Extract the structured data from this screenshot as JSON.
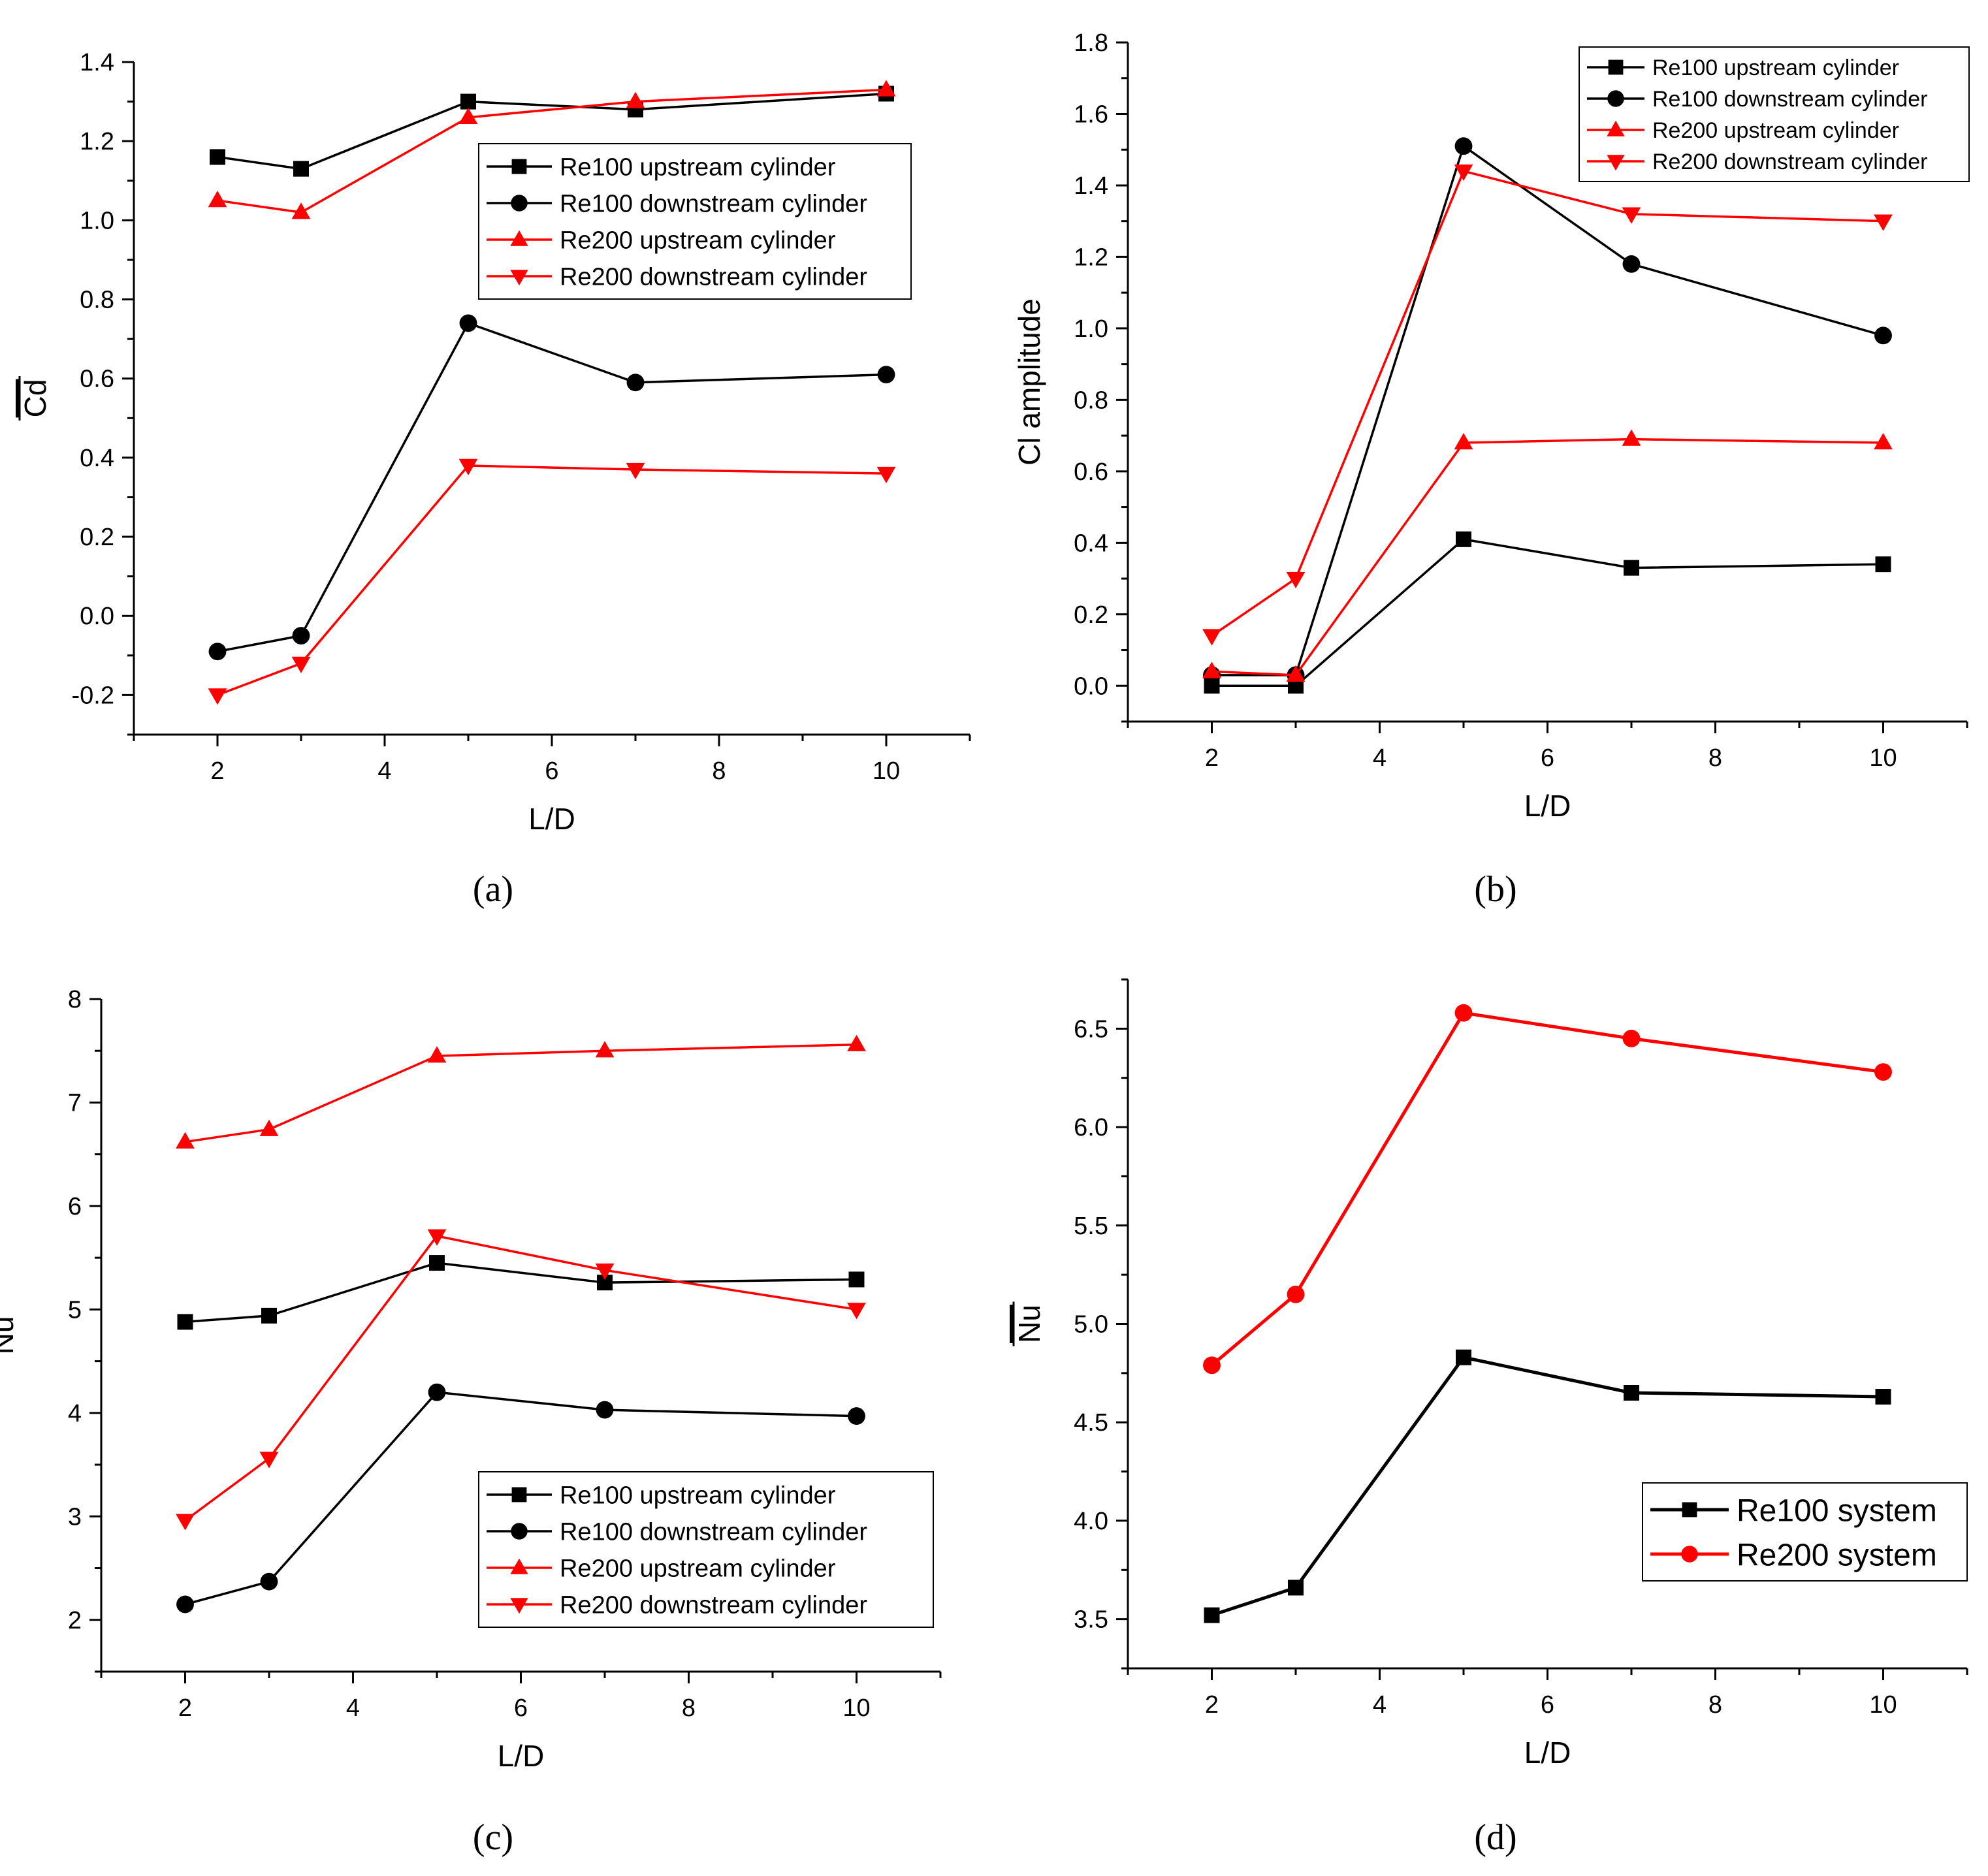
{
  "figure": {
    "panels": [
      {
        "id": "a",
        "caption": "(a)",
        "ylabel": "Cd",
        "ylabel_overline": true,
        "legend": [
          {
            "label": "Re100 upstream cylinder"
          },
          {
            "label": "Re100 downstream cylinder"
          },
          {
            "label": "Re200 upstream cylinder"
          },
          {
            "label": "Re200 downstream cylinder"
          }
        ]
      },
      {
        "id": "b",
        "caption": "(b)",
        "ylabel": "Cl amplitude",
        "ylabel_overline": false,
        "legend": [
          {
            "label": "Re100 upstream cylinder"
          },
          {
            "label": "Re100 downstream cylinder"
          },
          {
            "label": "Re200 upstream cylinder"
          },
          {
            "label": "Re200 downstream cylinder"
          }
        ]
      },
      {
        "id": "c",
        "caption": "(c)",
        "ylabel": "Nu",
        "ylabel_overline": true,
        "legend": [
          {
            "label": "Re100 upstream cylinder"
          },
          {
            "label": "Re100 downstream cylinder"
          },
          {
            "label": "Re200 upstream cylinder"
          },
          {
            "label": "Re200 downstream cylinder"
          }
        ]
      },
      {
        "id": "d",
        "caption": "(d)",
        "ylabel": "Nu",
        "ylabel_overline": true,
        "legend": [
          {
            "label": "Re100 system"
          },
          {
            "label": "Re200 system"
          }
        ]
      }
    ]
  },
  "chart_data": [
    {
      "id": "a",
      "type": "line",
      "xlabel": "L/D",
      "ylabel": "Cd",
      "xlim": [
        1,
        11
      ],
      "ylim": [
        -0.3,
        1.4
      ],
      "xticks": [
        2,
        4,
        6,
        8,
        10
      ],
      "yticks": [
        -0.2,
        0.0,
        0.2,
        0.4,
        0.6,
        0.8,
        1.0,
        1.2,
        1.4
      ],
      "ytick_decimals": 1,
      "legend_position": "upper-right",
      "grid": false,
      "x": [
        2,
        3,
        5,
        7,
        10
      ],
      "series": [
        {
          "name": "Re100 upstream cylinder",
          "color": "#000000",
          "marker": "square",
          "values": [
            1.16,
            1.13,
            1.3,
            1.28,
            1.32
          ]
        },
        {
          "name": "Re100 downstream cylinder",
          "color": "#000000",
          "marker": "circle",
          "values": [
            -0.09,
            -0.05,
            0.74,
            0.59,
            0.61
          ]
        },
        {
          "name": "Re200 upstream cylinder",
          "color": "#ff0000",
          "marker": "triangle-up",
          "values": [
            1.05,
            1.02,
            1.26,
            1.3,
            1.33
          ]
        },
        {
          "name": "Re200 downstream cylinder",
          "color": "#ff0000",
          "marker": "triangle-down",
          "values": [
            -0.2,
            -0.12,
            0.38,
            0.37,
            0.36
          ]
        }
      ]
    },
    {
      "id": "b",
      "type": "line",
      "xlabel": "L/D",
      "ylabel": "Cl amplitude",
      "xlim": [
        1,
        11
      ],
      "ylim": [
        -0.1,
        1.8
      ],
      "xticks": [
        2,
        4,
        6,
        8,
        10
      ],
      "yticks": [
        0.0,
        0.2,
        0.4,
        0.6,
        0.8,
        1.0,
        1.2,
        1.4,
        1.6,
        1.8
      ],
      "ytick_decimals": 1,
      "legend_position": "top-right",
      "grid": false,
      "x": [
        2,
        3,
        5,
        7,
        10
      ],
      "series": [
        {
          "name": "Re100 upstream cylinder",
          "color": "#000000",
          "marker": "square",
          "values": [
            0.0,
            0.0,
            0.41,
            0.33,
            0.34
          ]
        },
        {
          "name": "Re100 downstream cylinder",
          "color": "#000000",
          "marker": "circle",
          "values": [
            0.03,
            0.03,
            1.51,
            1.18,
            0.98
          ]
        },
        {
          "name": "Re200 upstream cylinder",
          "color": "#ff0000",
          "marker": "triangle-up",
          "values": [
            0.04,
            0.03,
            0.68,
            0.69,
            0.68
          ]
        },
        {
          "name": "Re200 downstream cylinder",
          "color": "#ff0000",
          "marker": "triangle-down",
          "values": [
            0.14,
            0.3,
            1.44,
            1.32,
            1.3
          ]
        }
      ]
    },
    {
      "id": "c",
      "type": "line",
      "xlabel": "L/D",
      "ylabel": "Nu",
      "xlim": [
        1,
        11
      ],
      "ylim": [
        1.5,
        8.0
      ],
      "xticks": [
        2,
        4,
        6,
        8,
        10
      ],
      "yticks": [
        2,
        3,
        4,
        5,
        6,
        7,
        8
      ],
      "ytick_decimals": 0,
      "legend_position": "lower-right",
      "grid": false,
      "x": [
        2,
        3,
        5,
        7,
        10
      ],
      "series": [
        {
          "name": "Re100 upstream cylinder",
          "color": "#000000",
          "marker": "square",
          "values": [
            4.88,
            4.94,
            5.45,
            5.26,
            5.29
          ]
        },
        {
          "name": "Re100 downstream cylinder",
          "color": "#000000",
          "marker": "circle",
          "values": [
            2.15,
            2.37,
            4.2,
            4.03,
            3.97
          ]
        },
        {
          "name": "Re200 upstream cylinder",
          "color": "#ff0000",
          "marker": "triangle-up",
          "values": [
            6.62,
            6.74,
            7.45,
            7.5,
            7.56
          ]
        },
        {
          "name": "Re200 downstream cylinder",
          "color": "#ff0000",
          "marker": "triangle-down",
          "values": [
            2.96,
            3.56,
            5.71,
            5.38,
            5.0
          ]
        }
      ]
    },
    {
      "id": "d",
      "type": "line",
      "xlabel": "L/D",
      "ylabel": "Nu",
      "xlim": [
        1,
        11
      ],
      "ylim": [
        3.25,
        6.75
      ],
      "xticks": [
        2,
        4,
        6,
        8,
        10
      ],
      "yticks": [
        3.5,
        4.0,
        4.5,
        5.0,
        5.5,
        6.0,
        6.5
      ],
      "ytick_decimals": 1,
      "legend_position": "lower-right",
      "grid": false,
      "x": [
        2,
        3,
        5,
        7,
        10
      ],
      "series": [
        {
          "name": "Re100 system",
          "color": "#000000",
          "marker": "square",
          "values": [
            3.52,
            3.66,
            4.83,
            4.65,
            4.63
          ]
        },
        {
          "name": "Re200 system",
          "color": "#ff0000",
          "marker": "circle",
          "values": [
            4.79,
            5.15,
            6.58,
            6.45,
            6.28
          ]
        }
      ]
    }
  ]
}
